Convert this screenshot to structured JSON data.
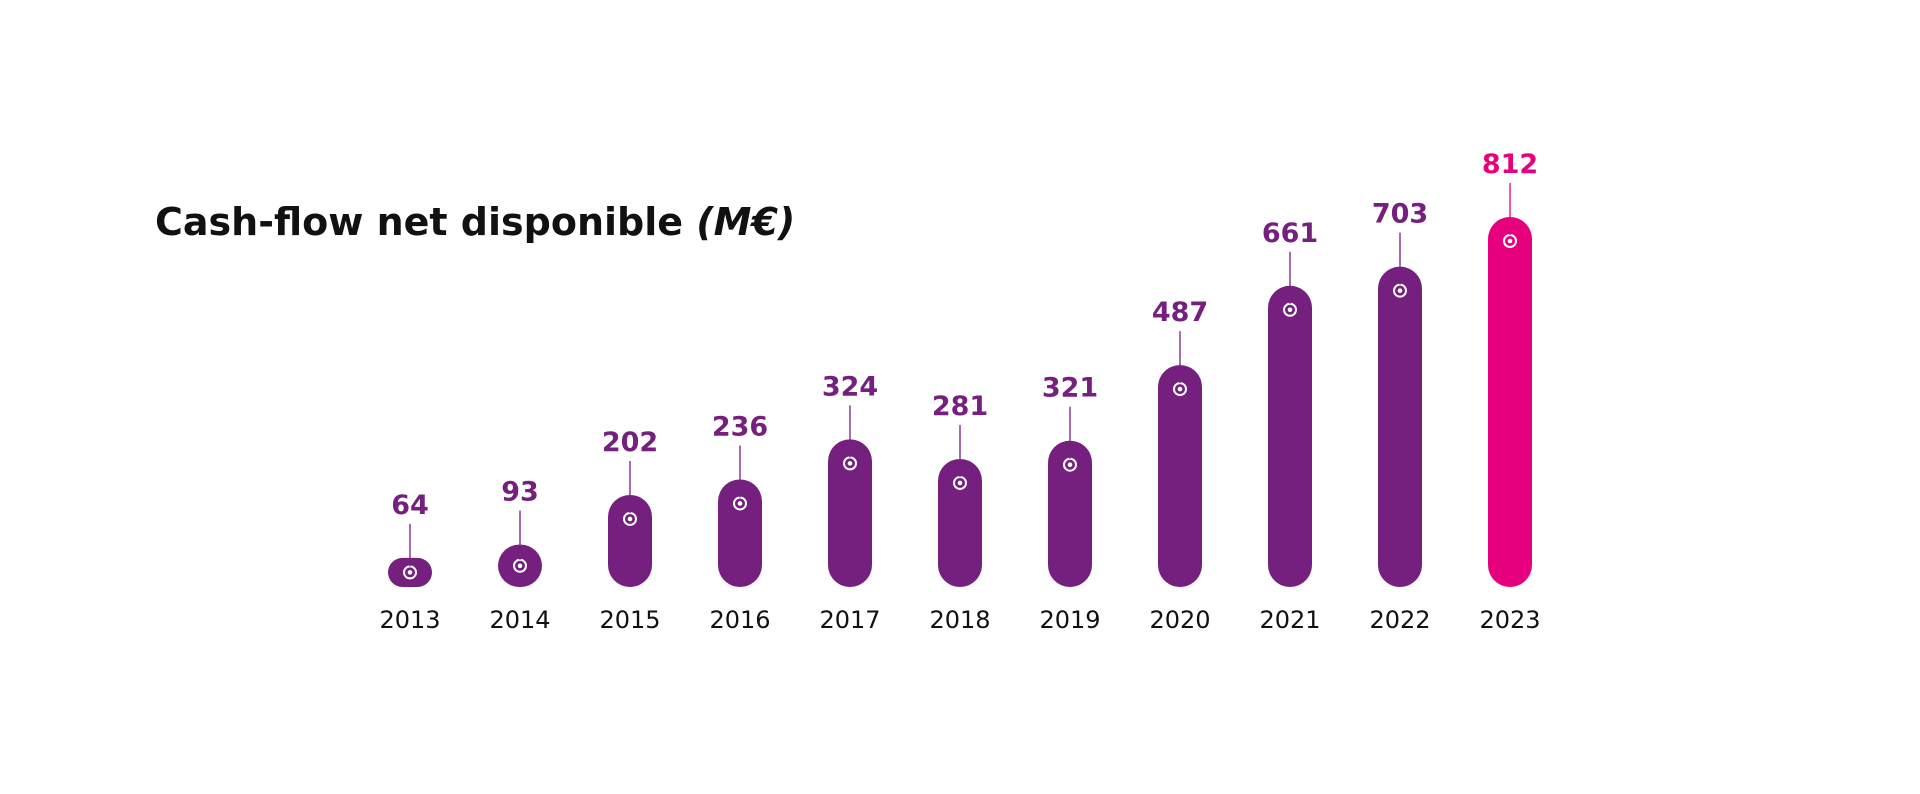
{
  "chart_data": {
    "type": "bar",
    "title": "Cash-flow net disponible",
    "title_unit": "(M€)",
    "categories": [
      "2013",
      "2014",
      "2015",
      "2016",
      "2017",
      "2018",
      "2019",
      "2020",
      "2021",
      "2022",
      "2023"
    ],
    "values": [
      64,
      93,
      202,
      236,
      324,
      281,
      321,
      487,
      661,
      703,
      812
    ],
    "ylim": [
      0,
      812
    ],
    "grid": false,
    "legend": "none",
    "colors": {
      "bar": "#75207F",
      "highlight": "#E6007E",
      "category_text": "#111111"
    },
    "highlight_index": 10
  }
}
